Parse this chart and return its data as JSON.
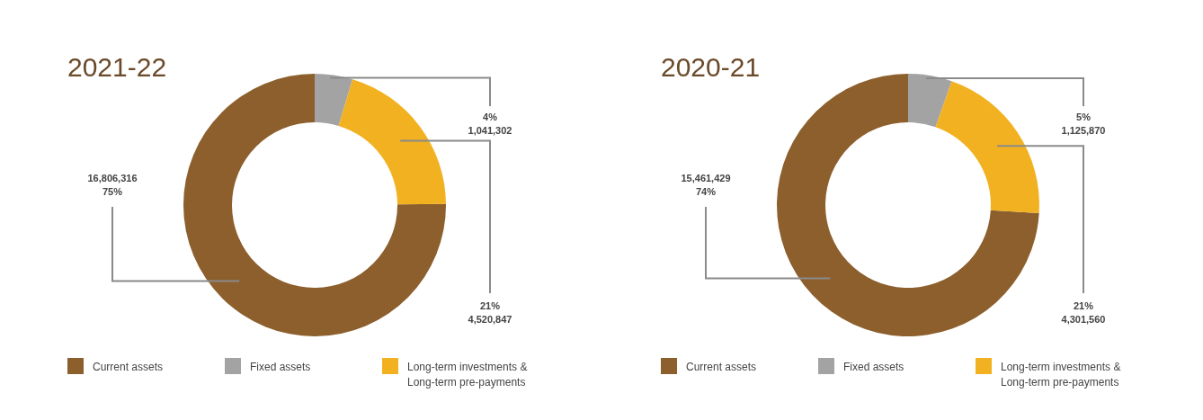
{
  "chart_data": [
    {
      "type": "donut",
      "title": "2021-22",
      "categories": [
        "Current assets",
        "Fixed assets",
        "Long-term investments & Long-term pre-payments"
      ],
      "values": [
        16806316,
        1041302,
        4520847
      ],
      "colors": [
        "#8c5f2d",
        "#a3a3a3",
        "#f2b120"
      ],
      "value_labels": [
        "16,806,316\n75%",
        "4%\n1,041,302",
        "21%\n4,520,847"
      ],
      "legend": "bottom"
    },
    {
      "type": "donut",
      "title": "2020-21",
      "categories": [
        "Current assets",
        "Fixed assets",
        "Long-term investments & Long-term pre-payments"
      ],
      "values": [
        15461429,
        1125870,
        4301560
      ],
      "colors": [
        "#8c5f2d",
        "#a3a3a3",
        "#f2b120"
      ],
      "value_labels": [
        "15,461,429\n74%",
        "5%\n1,125,870",
        "21%\n4,301,560"
      ],
      "legend": "bottom"
    }
  ]
}
